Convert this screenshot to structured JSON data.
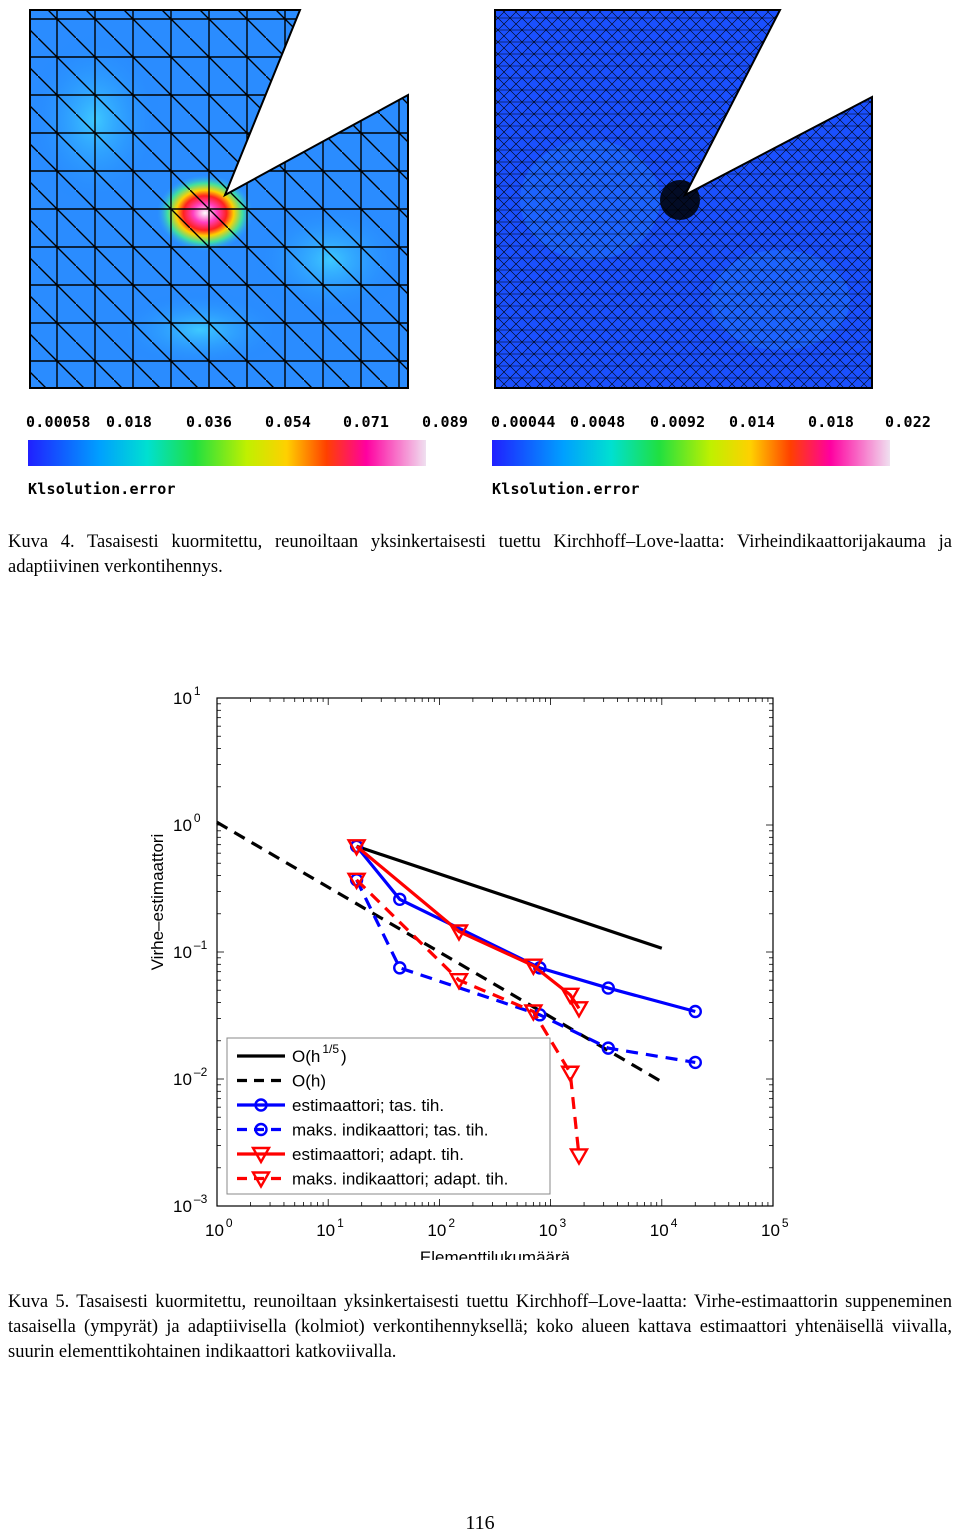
{
  "figure4": {
    "left_colorbar": {
      "ticks": [
        "0.00058",
        "0.018",
        "0.036",
        "0.054",
        "0.071",
        "0.089"
      ],
      "label": "Klsolution.error"
    },
    "right_colorbar": {
      "ticks": [
        "0.00044",
        "0.0048",
        "0.0092",
        "0.014",
        "0.018",
        "0.022"
      ],
      "label": "Klsolution.error"
    },
    "caption": "Kuva 4. Tasaisesti kuormitettu, reunoiltaan yksinkertaisesti tuettu Kirchhoff–Love-laatta: Virheindikaattorijakauma ja adaptiivinen verkontihennys."
  },
  "figure5": {
    "caption": "Kuva 5. Tasaisesti kuormitettu, reunoiltaan yksinkertaisesti tuettu Kirchhoff–Love-laatta: Virhe-estimaattorin suppeneminen tasaisella (ympyrät) ja adaptiivisella (kolmiot) verkontihennyksellä; koko alueen kattava estimaattori yhtenäisellä viivalla, suurin elementtikohtainen indikaattori katkoviivalla."
  },
  "chart_data": {
    "type": "line",
    "xlabel": "Elementtilukumäärä",
    "ylabel": "Virhe–estimaattori",
    "x_scale": "log",
    "y_scale": "log",
    "xlim": [
      1,
      100000
    ],
    "ylim": [
      0.001,
      10
    ],
    "x_ticks": [
      {
        "base": "10",
        "exp": "0"
      },
      {
        "base": "10",
        "exp": "1"
      },
      {
        "base": "10",
        "exp": "2"
      },
      {
        "base": "10",
        "exp": "3"
      },
      {
        "base": "10",
        "exp": "4"
      },
      {
        "base": "10",
        "exp": "5"
      }
    ],
    "y_ticks": [
      {
        "base": "10",
        "exp": "–3"
      },
      {
        "base": "10",
        "exp": "–2"
      },
      {
        "base": "10",
        "exp": "–1"
      },
      {
        "base": "10",
        "exp": "0"
      },
      {
        "base": "10",
        "exp": "1"
      }
    ],
    "legend_position": "bottom-left",
    "series": [
      {
        "name": "O(h^1/5)",
        "legend_main": "O(h",
        "legend_sup": "1/5",
        "legend_tail": ")",
        "color": "#000000",
        "dash": "solid",
        "marker": "none",
        "x": [
          18,
          10000
        ],
        "y": [
          0.68,
          0.107
        ]
      },
      {
        "name": "O(h)",
        "legend_main": "O(h)",
        "legend_sup": "",
        "legend_tail": "",
        "color": "#000000",
        "dash": "dashed",
        "marker": "none",
        "x": [
          1,
          10000
        ],
        "y": [
          1.05,
          0.0095
        ]
      },
      {
        "name": "estimaattori; tas. tih.",
        "legend_main": "estimaattori; tas. tih.",
        "legend_sup": "",
        "legend_tail": "",
        "color": "#0000ff",
        "dash": "solid",
        "marker": "circle",
        "x": [
          18,
          44,
          800,
          3300,
          20000
        ],
        "y": [
          0.68,
          0.26,
          0.075,
          0.052,
          0.034
        ]
      },
      {
        "name": "maks. indikaattori; tas. tih.",
        "legend_main": "maks. indikaattori; tas. tih.",
        "legend_sup": "",
        "legend_tail": "",
        "color": "#0000ff",
        "dash": "dashed",
        "marker": "circle",
        "x": [
          18,
          44,
          800,
          3300,
          20000
        ],
        "y": [
          0.37,
          0.075,
          0.032,
          0.0175,
          0.0135
        ]
      },
      {
        "name": "estimaattori; adapt. tih.",
        "legend_main": "estimaattori; adapt. tih.",
        "legend_sup": "",
        "legend_tail": "",
        "color": "#ff0000",
        "dash": "solid",
        "marker": "triangle",
        "x": [
          18,
          150,
          700,
          1500,
          1800
        ],
        "y": [
          0.68,
          0.145,
          0.078,
          0.046,
          0.036
        ]
      },
      {
        "name": "maks. indikaattori; adapt. tih.",
        "legend_main": "maks. indikaattori; adapt. tih.",
        "legend_sup": "",
        "legend_tail": "",
        "color": "#ff0000",
        "dash": "dashed",
        "marker": "triangle",
        "x": [
          18,
          150,
          700,
          1500,
          1800
        ],
        "y": [
          0.37,
          0.06,
          0.034,
          0.0112,
          0.0025
        ]
      }
    ]
  },
  "page_number": "116"
}
